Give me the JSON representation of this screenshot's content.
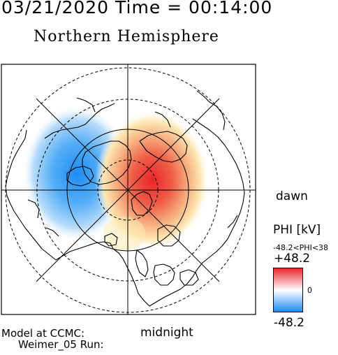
{
  "header": {
    "timestamp": "03/21/2020 Time = 00:14:00",
    "hemisphere": "Northern Hemisphere"
  },
  "plot": {
    "dawn_label": "dawn",
    "midnight_label": "midnight",
    "potential_cells": [
      {
        "sign": "negative",
        "side": "dusk"
      },
      {
        "sign": "positive",
        "side": "dawn"
      }
    ]
  },
  "colorbar": {
    "title": "PHI [kV]",
    "range_text": "-48.2<PHI<38",
    "max_label": "+48.2",
    "zero_label": "0",
    "min_label": "-48.2",
    "colors": {
      "positive": "#e8262b",
      "zero": "#ffffff",
      "negative": "#1d8cf5"
    }
  },
  "footer": {
    "line1": "Model at CCMC:",
    "line2": "Weimer_05 Run:"
  }
}
